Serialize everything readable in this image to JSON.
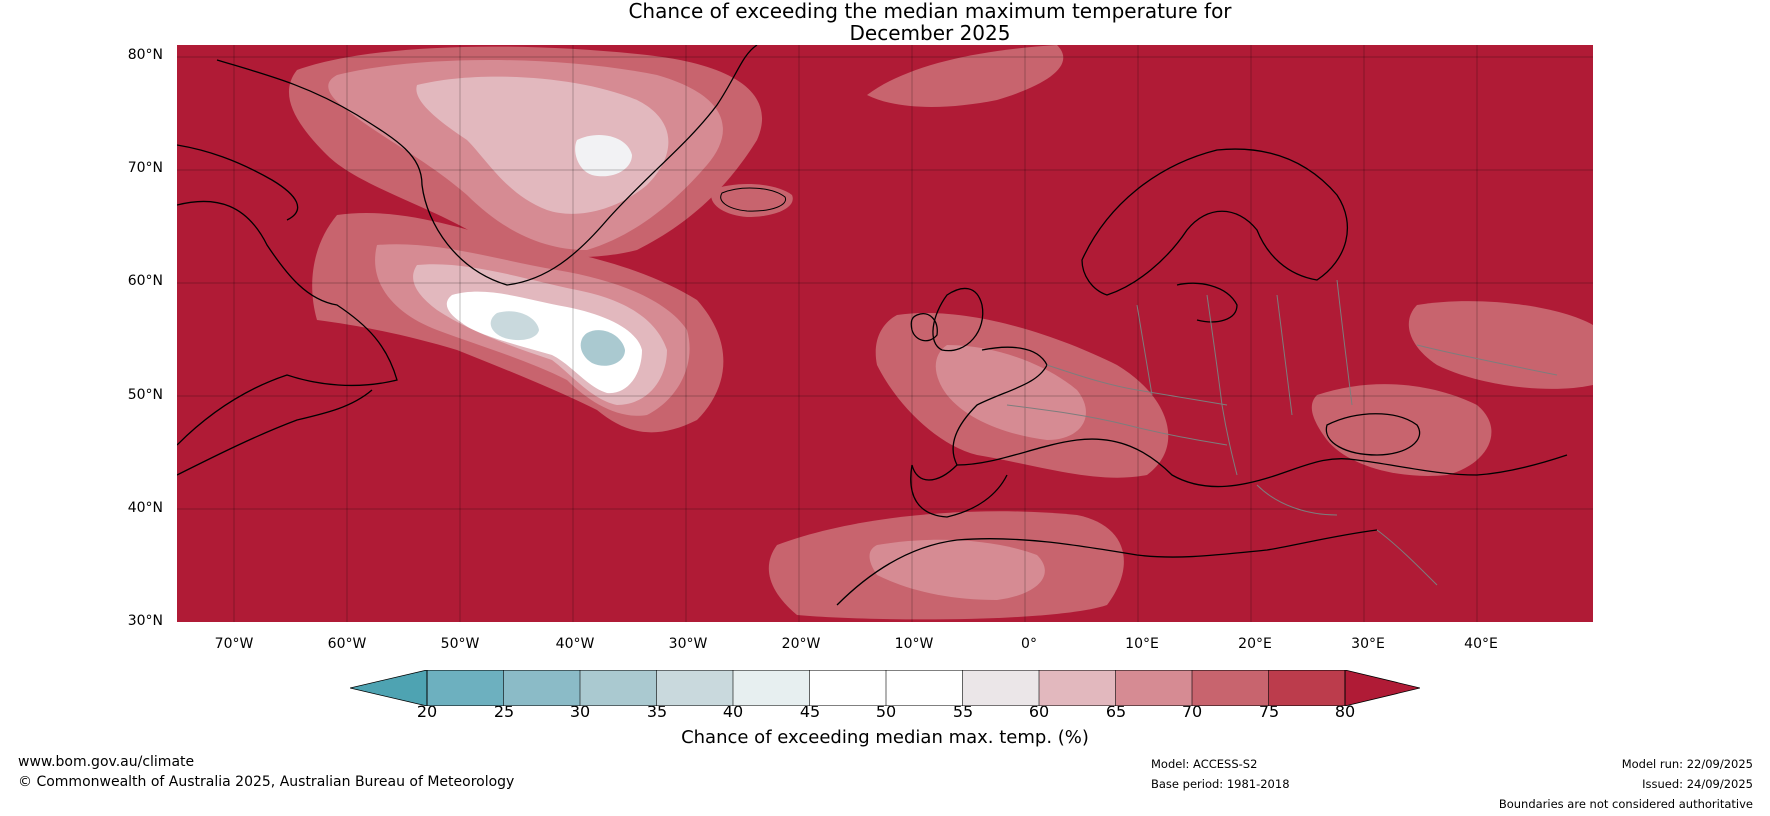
{
  "title": {
    "line1": "Chance of exceeding the median maximum temperature for",
    "line2": "December 2025"
  },
  "map": {
    "background_color": "#b01b36",
    "latitude_labels": [
      "80°N",
      "70°N",
      "60°N",
      "50°N",
      "40°N",
      "30°N"
    ],
    "longitude_labels": [
      "70°W",
      "60°W",
      "50°W",
      "40°W",
      "30°W",
      "20°W",
      "10°W",
      "0°",
      "10°E",
      "20°E",
      "30°E",
      "40°E"
    ]
  },
  "colorbar": {
    "ticks": [
      "20",
      "25",
      "30",
      "35",
      "40",
      "45",
      "50",
      "55",
      "60",
      "65",
      "70",
      "75",
      "80"
    ],
    "colors": [
      "#4ea3b2",
      "#6db0bf",
      "#8bbbc7",
      "#aac9d0",
      "#c9d9dd",
      "#e7eff0",
      "#ffffff",
      "#ffffff",
      "#ebe6e8",
      "#e2b8be",
      "#d68b93",
      "#c8646e",
      "#bc3c4c",
      "#b01b36"
    ],
    "label": "Chance of exceeding median max. temp. (%)"
  },
  "footer": {
    "website": "www.bom.gov.au/climate",
    "copyright": "© Commonwealth of Australia 2025, Australian Bureau of Meteorology",
    "model": "Model: ACCESS-S2",
    "base_period": "Base period: 1981-2018",
    "model_run": "Model run: 22/09/2025",
    "issued": "Issued: 24/09/2025",
    "disclaimer": "Boundaries are not considered authoritative"
  }
}
